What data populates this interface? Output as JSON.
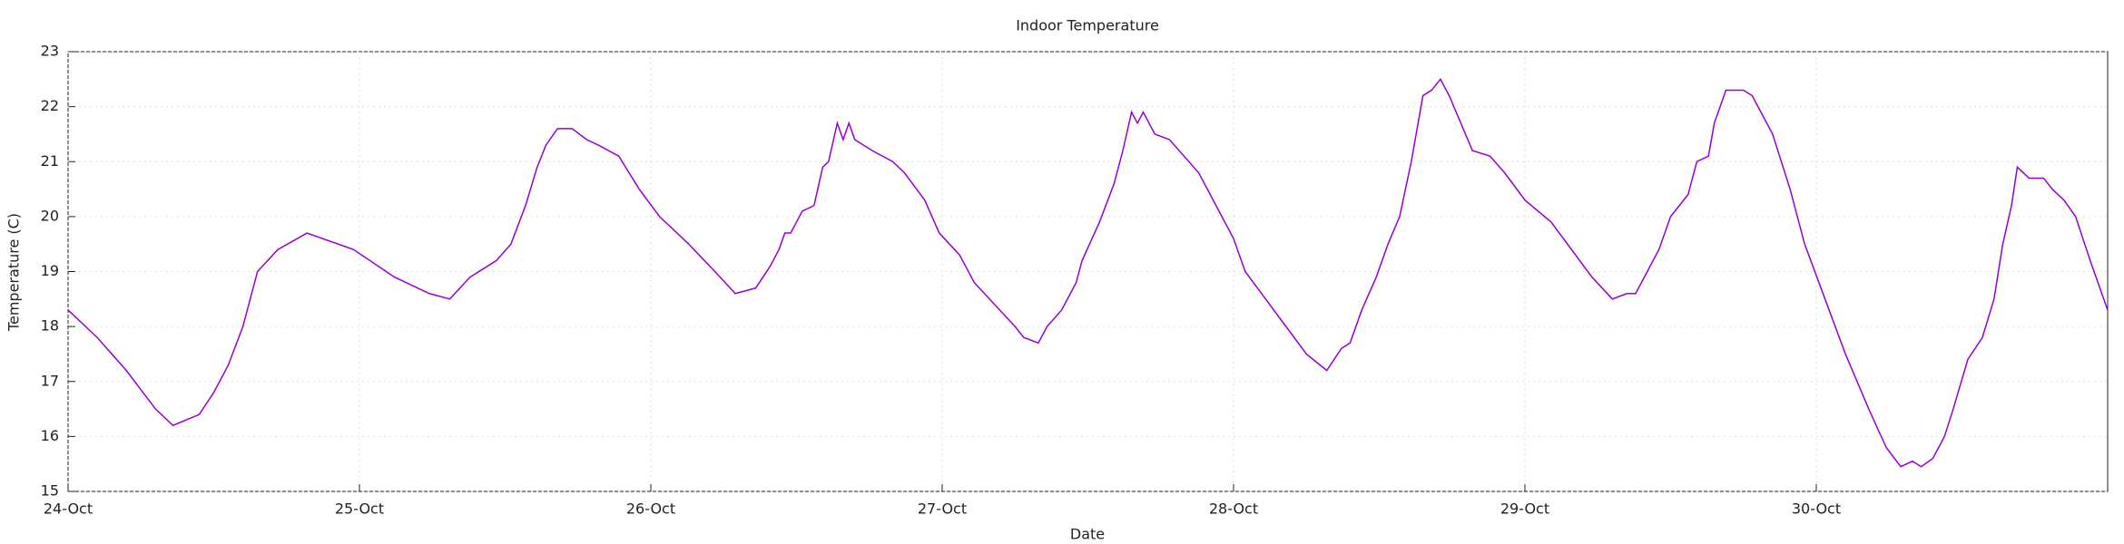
{
  "chart_data": {
    "type": "line",
    "title": "Indoor Temperature",
    "x_label": "Date",
    "y_label": "Temperature (C)",
    "x": [
      0,
      0.1,
      0.2,
      0.3,
      0.36,
      0.45,
      0.5,
      0.55,
      0.6,
      0.65,
      0.72,
      0.82,
      0.98,
      1.12,
      1.24,
      1.31,
      1.38,
      1.47,
      1.52,
      1.57,
      1.61,
      1.64,
      1.68,
      1.73,
      1.78,
      1.82,
      1.89,
      1.96,
      2.03,
      2.13,
      2.22,
      2.29,
      2.36,
      2.41,
      2.44,
      2.46,
      2.48,
      2.52,
      2.56,
      2.59,
      2.61,
      2.64,
      2.66,
      2.68,
      2.7,
      2.76,
      2.83,
      2.87,
      2.94,
      2.99,
      3.06,
      3.11,
      3.18,
      3.25,
      3.28,
      3.33,
      3.36,
      3.41,
      3.46,
      3.48,
      3.54,
      3.59,
      3.62,
      3.65,
      3.67,
      3.69,
      3.73,
      3.78,
      3.83,
      3.88,
      3.94,
      4.0,
      4.04,
      4.11,
      4.18,
      4.25,
      4.32,
      4.37,
      4.4,
      4.44,
      4.49,
      4.53,
      4.57,
      4.61,
      4.65,
      4.68,
      4.71,
      4.74,
      4.78,
      4.82,
      4.88,
      4.93,
      5.0,
      5.09,
      5.16,
      5.23,
      5.3,
      5.35,
      5.38,
      5.42,
      5.46,
      5.5,
      5.56,
      5.59,
      5.63,
      5.65,
      5.69,
      5.75,
      5.78,
      5.82,
      5.85,
      5.91,
      5.96,
      6.03,
      6.1,
      6.18,
      6.24,
      6.29,
      6.33,
      6.36,
      6.4,
      6.44,
      6.47,
      6.52,
      6.57,
      6.61,
      6.64,
      6.67,
      6.69,
      6.73,
      6.78,
      6.81,
      6.85,
      6.89,
      6.94,
      7.0
    ],
    "series": [
      {
        "name": "Indoor Temperature",
        "color": "#9400d3",
        "values": [
          18.3,
          17.8,
          17.2,
          16.5,
          16.2,
          16.4,
          16.8,
          17.3,
          18.0,
          19.0,
          19.4,
          19.7,
          19.4,
          18.9,
          18.6,
          18.5,
          18.9,
          19.2,
          19.5,
          20.2,
          20.9,
          21.3,
          21.6,
          21.6,
          21.4,
          21.3,
          21.1,
          20.5,
          20.0,
          19.5,
          19.0,
          18.6,
          18.7,
          19.1,
          19.4,
          19.7,
          19.7,
          20.1,
          20.2,
          20.9,
          21.0,
          21.7,
          21.4,
          21.7,
          21.4,
          21.2,
          21.0,
          20.8,
          20.3,
          19.7,
          19.3,
          18.8,
          18.4,
          18.0,
          17.8,
          17.7,
          18.0,
          18.3,
          18.8,
          19.2,
          19.9,
          20.6,
          21.2,
          21.9,
          21.7,
          21.9,
          21.5,
          21.4,
          21.1,
          20.8,
          20.2,
          19.6,
          19.0,
          18.5,
          18.0,
          17.5,
          17.2,
          17.6,
          17.7,
          18.3,
          18.9,
          19.5,
          20.0,
          21.0,
          22.2,
          22.3,
          22.5,
          22.2,
          21.7,
          21.2,
          21.1,
          20.8,
          20.3,
          19.9,
          19.4,
          18.9,
          18.5,
          18.6,
          18.6,
          19.0,
          19.4,
          20.0,
          20.4,
          21.0,
          21.1,
          21.7,
          22.3,
          22.3,
          22.2,
          21.8,
          21.5,
          20.5,
          19.5,
          18.5,
          17.5,
          16.5,
          15.8,
          15.45,
          15.55,
          15.45,
          15.6,
          16.0,
          16.5,
          17.4,
          17.8,
          18.5,
          19.5,
          20.2,
          20.9,
          20.7,
          20.7,
          20.5,
          20.3,
          20.0,
          19.2,
          18.3
        ]
      }
    ],
    "xlim": [
      0,
      7
    ],
    "xticks": [
      {
        "value": 0,
        "label": "24-Oct"
      },
      {
        "value": 1,
        "label": "25-Oct"
      },
      {
        "value": 2,
        "label": "26-Oct"
      },
      {
        "value": 3,
        "label": "27-Oct"
      },
      {
        "value": 4,
        "label": "28-Oct"
      },
      {
        "value": 5,
        "label": "29-Oct"
      },
      {
        "value": 6,
        "label": "30-Oct"
      }
    ],
    "ylim": [
      15,
      23
    ],
    "yticks": [
      15,
      16,
      17,
      18,
      19,
      20,
      21,
      22,
      23
    ],
    "grid": true
  }
}
